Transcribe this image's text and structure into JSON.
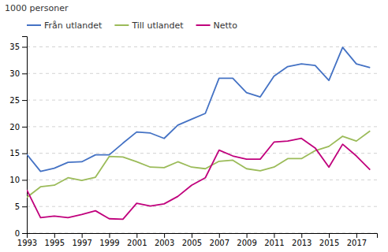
{
  "chart_data": {
    "type": "line",
    "y_label": "1000 personer",
    "x": [
      1993,
      1994,
      1995,
      1996,
      1997,
      1998,
      1999,
      2000,
      2001,
      2002,
      2003,
      2004,
      2005,
      2006,
      2007,
      2008,
      2009,
      2010,
      2011,
      2012,
      2013,
      2014,
      2015,
      2016,
      2017,
      2018
    ],
    "series": [
      {
        "name": "Från utlandet",
        "color": "#4472c4",
        "values": [
          14.8,
          11.6,
          12.2,
          13.3,
          13.4,
          14.7,
          14.7,
          16.9,
          19.0,
          18.8,
          17.8,
          20.3,
          21.4,
          22.5,
          29.1,
          29.1,
          26.4,
          25.6,
          29.5,
          31.3,
          31.8,
          31.5,
          28.7,
          34.9,
          31.8,
          31.1
        ]
      },
      {
        "name": "Till utlandet",
        "color": "#9bbb59",
        "values": [
          6.7,
          8.7,
          9.0,
          10.4,
          9.9,
          10.5,
          14.4,
          14.3,
          13.4,
          12.4,
          12.3,
          13.4,
          12.4,
          12.1,
          13.5,
          13.7,
          12.1,
          11.7,
          12.4,
          14.0,
          14.0,
          15.5,
          16.3,
          18.2,
          17.3,
          19.2
        ]
      },
      {
        "name": "Netto",
        "color": "#c0007c",
        "values": [
          8.1,
          2.9,
          3.2,
          2.9,
          3.5,
          4.2,
          2.7,
          2.6,
          5.6,
          5.1,
          5.5,
          6.9,
          9.0,
          10.4,
          15.6,
          14.5,
          13.9,
          13.9,
          17.1,
          17.3,
          17.8,
          16.0,
          12.4,
          16.7,
          14.5,
          11.9
        ]
      }
    ],
    "xlim": [
      1993,
      2018.5
    ],
    "xticks": [
      1993,
      1995,
      1997,
      1999,
      2001,
      2003,
      2005,
      2007,
      2009,
      2011,
      2013,
      2015,
      2017
    ],
    "ylim": [
      0,
      37
    ],
    "yticks": [
      0,
      5,
      10,
      15,
      20,
      25,
      30,
      35
    ],
    "grid": true,
    "legend": "upper left"
  }
}
